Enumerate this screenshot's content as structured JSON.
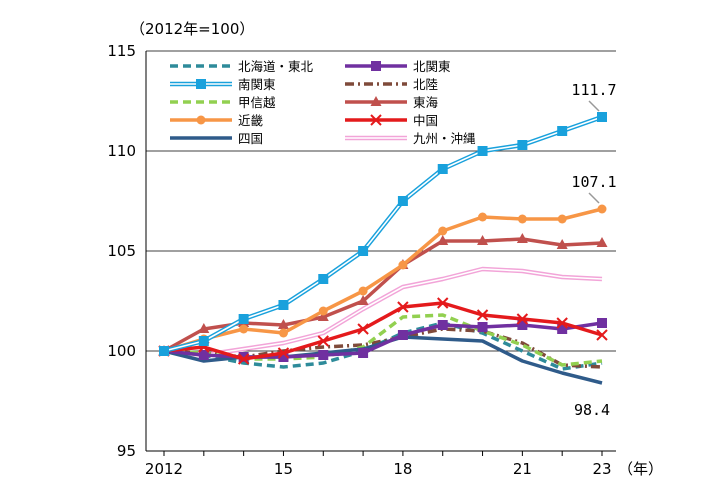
{
  "chart_data": {
    "type": "line",
    "unit_label": "（2012年=100）",
    "xlabel_suffix": "（年）",
    "x": [
      2012,
      2013,
      2014,
      2015,
      2016,
      2017,
      2018,
      2019,
      2020,
      2021,
      2022,
      2023
    ],
    "x_tick_values": [
      2012,
      2015,
      2018,
      2021,
      2023
    ],
    "x_tick_labels": [
      "2012",
      "15",
      "18",
      "21",
      "23"
    ],
    "xlim": [
      2012,
      2023
    ],
    "ylim": [
      95,
      115
    ],
    "y_ticks": [
      95,
      100,
      105,
      110,
      115
    ],
    "y_tick_labels": [
      "95",
      "100",
      "105",
      "110",
      "115"
    ],
    "series": [
      {
        "key": "hokkaido",
        "name": "北海道・東北",
        "color": "#2E8B9A",
        "dash": "8,5",
        "marker": "none",
        "values": [
          100.0,
          99.8,
          99.4,
          99.2,
          99.4,
          100.0,
          100.9,
          101.4,
          100.9,
          100.0,
          99.1,
          99.4
        ]
      },
      {
        "key": "kitakanto",
        "name": "北関東",
        "color": "#7030A0",
        "dash": "",
        "marker": "square",
        "values": [
          100.0,
          99.8,
          99.7,
          99.7,
          99.8,
          99.9,
          100.8,
          101.3,
          101.2,
          101.3,
          101.1,
          101.4
        ]
      },
      {
        "key": "minamikanto",
        "name": "南関東",
        "color": "#19A1DC",
        "dash": "",
        "marker": "square",
        "double": true,
        "values": [
          100.0,
          100.5,
          101.6,
          102.3,
          103.6,
          105.0,
          107.5,
          109.1,
          110.0,
          110.3,
          111.0,
          111.7
        ]
      },
      {
        "key": "hokuriku",
        "name": "北陸",
        "color": "#7F4A3A",
        "dash": "9,4,2,4",
        "marker": "none",
        "values": [
          100.0,
          99.9,
          99.7,
          100.0,
          100.2,
          100.3,
          100.7,
          101.1,
          101.0,
          100.4,
          99.3,
          99.2
        ]
      },
      {
        "key": "koshinetsu",
        "name": "甲信越",
        "color": "#92D050",
        "dash": "8,5",
        "marker": "none",
        "values": [
          100.0,
          99.9,
          99.6,
          99.6,
          99.7,
          100.2,
          101.7,
          101.8,
          101.0,
          100.3,
          99.3,
          99.5
        ]
      },
      {
        "key": "tokai",
        "name": "東海",
        "color": "#C0504D",
        "dash": "",
        "marker": "triangle",
        "values": [
          100.0,
          101.1,
          101.4,
          101.3,
          101.7,
          102.5,
          104.3,
          105.5,
          105.5,
          105.6,
          105.3,
          105.4
        ]
      },
      {
        "key": "kinki",
        "name": "近畿",
        "color": "#F79646",
        "dash": "",
        "marker": "circle",
        "values": [
          100.0,
          100.6,
          101.1,
          100.9,
          102.0,
          103.0,
          104.3,
          106.0,
          106.7,
          106.6,
          106.6,
          107.1
        ]
      },
      {
        "key": "chugoku",
        "name": "中国",
        "color": "#E41A1C",
        "dash": "",
        "marker": "x",
        "values": [
          100.0,
          100.2,
          99.6,
          99.9,
          100.5,
          101.1,
          102.2,
          102.4,
          101.8,
          101.6,
          101.4,
          100.8
        ]
      },
      {
        "key": "shikoku",
        "name": "四国",
        "color": "#2F5B8A",
        "dash": "",
        "marker": "none",
        "values": [
          100.0,
          99.5,
          99.7,
          99.7,
          99.9,
          100.1,
          100.7,
          100.6,
          100.5,
          99.5,
          98.9,
          98.4
        ]
      },
      {
        "key": "kyushu",
        "name": "九州・沖縄",
        "color": "#F2A4D8",
        "dash": "",
        "marker": "none",
        "double": true,
        "values": [
          100.0,
          99.8,
          100.1,
          100.4,
          100.9,
          102.1,
          103.2,
          103.6,
          104.1,
          104.0,
          103.7,
          103.6
        ]
      }
    ],
    "annotations": [
      {
        "series": "minamikanto",
        "text": "111.7"
      },
      {
        "series": "kinki",
        "text": "107.1"
      },
      {
        "series": "shikoku",
        "text": "98.4"
      }
    ],
    "legend_position": "top-left",
    "grid": "horizontal"
  }
}
